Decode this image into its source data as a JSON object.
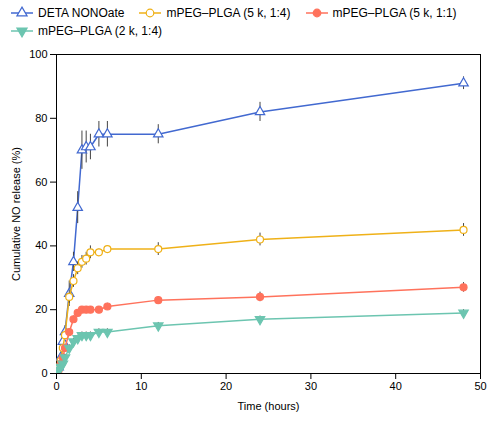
{
  "chart_data": {
    "type": "line",
    "title": "",
    "xlabel": "Time (hours)",
    "ylabel": "Cumulative NO release (%)",
    "xlim": [
      0,
      50
    ],
    "ylim": [
      0,
      100
    ],
    "xticks": [
      0,
      10,
      20,
      30,
      40,
      50
    ],
    "yticks": [
      0,
      20,
      40,
      60,
      80,
      100
    ],
    "legend": "upper left",
    "series": [
      {
        "name": "DETA NONOate",
        "marker": "triangle-up-open",
        "x": [
          0,
          0.25,
          0.5,
          0.75,
          1,
          1.5,
          2,
          2.5,
          3,
          3.5,
          4,
          5,
          6,
          12,
          24,
          48
        ],
        "values": [
          0,
          2,
          5,
          10,
          13,
          25,
          35,
          52,
          70,
          71,
          71,
          75,
          75,
          75,
          82,
          91
        ],
        "yerr": [
          0,
          0.5,
          1,
          2,
          2,
          4,
          3,
          5,
          6,
          5,
          4,
          4,
          4,
          3,
          3,
          2
        ]
      },
      {
        "name": "mPEG–PLGA (5 k, 1:4)",
        "marker": "circle-open",
        "x": [
          0,
          0.25,
          0.5,
          0.75,
          1,
          1.5,
          2,
          2.5,
          3,
          3.5,
          4,
          5,
          6,
          12,
          24,
          48
        ],
        "values": [
          0,
          2,
          4,
          8,
          12,
          24,
          29,
          33,
          35,
          36,
          38,
          38,
          39,
          39,
          42,
          45
        ],
        "yerr": [
          0,
          0.5,
          1,
          1,
          1,
          2,
          2,
          2,
          2,
          2,
          2,
          1,
          1,
          2,
          2,
          2
        ]
      },
      {
        "name": "mPEG–PLGA (5 k, 1:1)",
        "marker": "circle",
        "x": [
          0,
          0.25,
          0.5,
          0.75,
          1,
          1.5,
          2,
          2.5,
          3,
          3.5,
          4,
          5,
          6,
          12,
          24,
          48
        ],
        "values": [
          0,
          1,
          3,
          5,
          8,
          13,
          17,
          19,
          20,
          20,
          20,
          20,
          21,
          23,
          24,
          27
        ],
        "yerr": [
          0,
          0.3,
          0.5,
          0.5,
          1,
          1,
          1,
          1,
          1,
          1,
          1,
          1,
          1,
          1,
          1.5,
          1.5
        ]
      },
      {
        "name": "mPEG–PLGA (2 k, 1:4)",
        "marker": "triangle-down",
        "x": [
          0,
          0.25,
          0.5,
          0.75,
          1,
          1.5,
          2,
          2.5,
          3,
          3.5,
          4,
          5,
          6,
          12,
          24,
          48
        ],
        "values": [
          0,
          1,
          2,
          3,
          5,
          8,
          10,
          11,
          12,
          12,
          12,
          13,
          13,
          15,
          17,
          19
        ],
        "yerr": [
          0,
          0.3,
          0.5,
          0.5,
          1,
          1,
          1,
          1,
          1,
          1,
          1,
          1,
          1,
          1,
          1,
          1
        ]
      }
    ]
  }
}
